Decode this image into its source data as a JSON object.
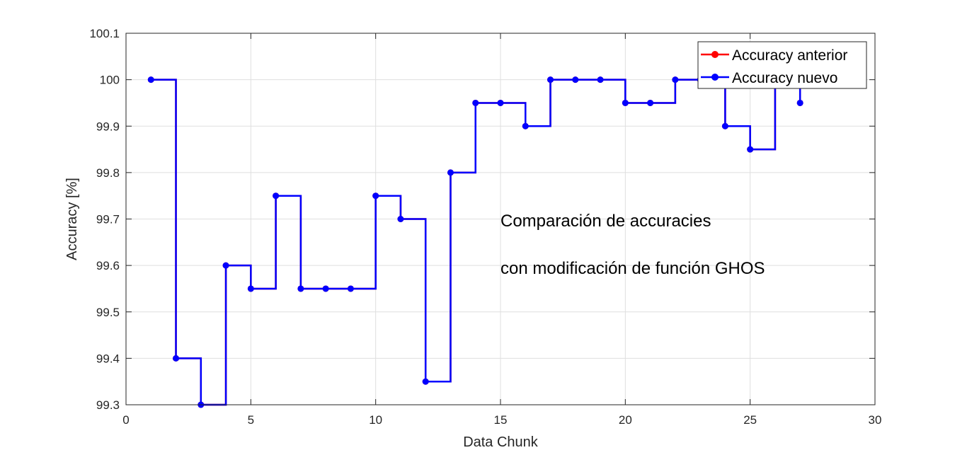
{
  "chart_data": {
    "type": "line",
    "step": "post",
    "xlabel": "Data Chunk",
    "ylabel": "Accuracy [%]",
    "xlim": [
      0,
      30
    ],
    "ylim": [
      99.3,
      100.1
    ],
    "xticks": [
      "0",
      "5",
      "10",
      "15",
      "20",
      "25",
      "30"
    ],
    "yticks": [
      "99.3",
      "99.4",
      "99.5",
      "99.6",
      "99.7",
      "99.8",
      "99.9",
      "100",
      "100.1"
    ],
    "grid": true,
    "legend_position": "top-right",
    "annotations": [
      "Comparación de accuracies",
      "con modificación de función GHOS"
    ],
    "series": [
      {
        "name": "Accuracy anterior",
        "color": "#ff0000",
        "x": [
          1,
          2,
          3,
          4,
          5,
          6,
          7,
          8,
          9,
          10,
          11,
          12,
          13,
          14,
          15,
          16,
          17,
          18,
          19,
          20,
          21,
          22,
          23,
          24,
          25,
          26,
          27
        ],
        "values": [
          100,
          99.4,
          99.3,
          99.6,
          99.55,
          99.75,
          99.55,
          99.55,
          99.55,
          99.75,
          99.7,
          99.35,
          99.8,
          99.95,
          99.95,
          99.9,
          100,
          100,
          100,
          99.95,
          99.95,
          100,
          100,
          99.9,
          99.85,
          100,
          99.95
        ]
      },
      {
        "name": "Accuracy nuevo",
        "color": "#0000ff",
        "x": [
          1,
          2,
          3,
          4,
          5,
          6,
          7,
          8,
          9,
          10,
          11,
          12,
          13,
          14,
          15,
          16,
          17,
          18,
          19,
          20,
          21,
          22,
          23,
          24,
          25,
          26,
          27
        ],
        "values": [
          100,
          99.4,
          99.3,
          99.6,
          99.55,
          99.75,
          99.55,
          99.55,
          99.55,
          99.75,
          99.7,
          99.35,
          99.8,
          99.95,
          99.95,
          99.9,
          100,
          100,
          100,
          99.95,
          99.95,
          100,
          100,
          99.9,
          99.85,
          100,
          99.95
        ]
      }
    ]
  }
}
